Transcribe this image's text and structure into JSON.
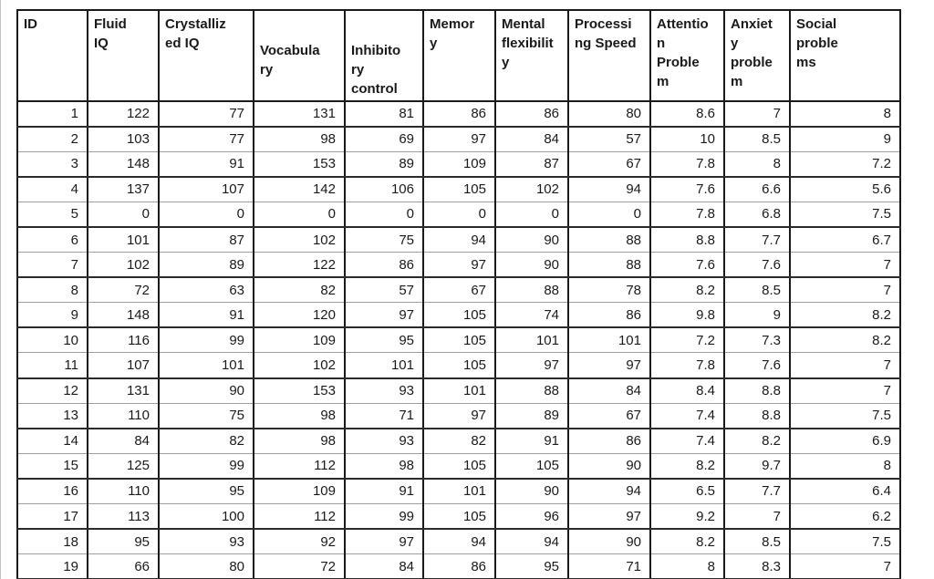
{
  "table": {
    "columns": [
      {
        "key": "id",
        "label": "ID"
      },
      {
        "key": "fluid-iq",
        "label": "Fluid\nIQ"
      },
      {
        "key": "crystallized-iq",
        "label": "Crystalliz\ned IQ"
      },
      {
        "key": "vocabulary",
        "label": "Vocabula\nry"
      },
      {
        "key": "inhibitory-control",
        "label": "Inhibito\nry\ncontrol"
      },
      {
        "key": "memory",
        "label": "Memor\ny"
      },
      {
        "key": "mental-flexibility",
        "label": "Mental\nflexibilit\ny"
      },
      {
        "key": "processing-speed",
        "label": "Processi\nng Speed"
      },
      {
        "key": "attention-problem",
        "label": "Attentio\nn\nProble\nm"
      },
      {
        "key": "anxiety-problem",
        "label": "Anxiet\ny\nproble\nm"
      },
      {
        "key": "social-problems",
        "label": "Social\nproble\nms"
      }
    ],
    "rows": [
      [
        1,
        122,
        77,
        131,
        81,
        86,
        86,
        80,
        8.6,
        7,
        8
      ],
      [
        2,
        103,
        77,
        98,
        69,
        97,
        84,
        57,
        10,
        8.5,
        9
      ],
      [
        3,
        148,
        91,
        153,
        89,
        109,
        87,
        67,
        7.8,
        8,
        7.2
      ],
      [
        4,
        137,
        107,
        142,
        106,
        105,
        102,
        94,
        7.6,
        6.6,
        5.6
      ],
      [
        5,
        0,
        0,
        0,
        0,
        0,
        0,
        0,
        7.8,
        6.8,
        7.5
      ],
      [
        6,
        101,
        87,
        102,
        75,
        94,
        90,
        88,
        8.8,
        7.7,
        6.7
      ],
      [
        7,
        102,
        89,
        122,
        86,
        97,
        90,
        88,
        7.6,
        7.6,
        7
      ],
      [
        8,
        72,
        63,
        82,
        57,
        67,
        88,
        78,
        8.2,
        8.5,
        7
      ],
      [
        9,
        148,
        91,
        120,
        97,
        105,
        74,
        86,
        9.8,
        9,
        8.2
      ],
      [
        10,
        116,
        99,
        109,
        95,
        105,
        101,
        101,
        7.2,
        7.3,
        8.2
      ],
      [
        11,
        107,
        101,
        102,
        101,
        105,
        97,
        97,
        7.8,
        7.6,
        7
      ],
      [
        12,
        131,
        90,
        153,
        93,
        101,
        88,
        84,
        8.4,
        8.8,
        7
      ],
      [
        13,
        110,
        75,
        98,
        71,
        97,
        89,
        67,
        7.4,
        8.8,
        7.5
      ],
      [
        14,
        84,
        82,
        98,
        93,
        82,
        91,
        86,
        7.4,
        8.2,
        6.9
      ],
      [
        15,
        125,
        99,
        112,
        98,
        105,
        105,
        90,
        8.2,
        9.7,
        8
      ],
      [
        16,
        110,
        95,
        109,
        91,
        101,
        90,
        94,
        6.5,
        7.7,
        6.4
      ],
      [
        17,
        113,
        100,
        112,
        99,
        105,
        96,
        97,
        9.2,
        7,
        6.2
      ],
      [
        18,
        95,
        93,
        92,
        97,
        94,
        94,
        90,
        8.2,
        8.5,
        7.5
      ],
      [
        19,
        66,
        80,
        72,
        84,
        86,
        95,
        71,
        8,
        8.3,
        7
      ]
    ]
  }
}
